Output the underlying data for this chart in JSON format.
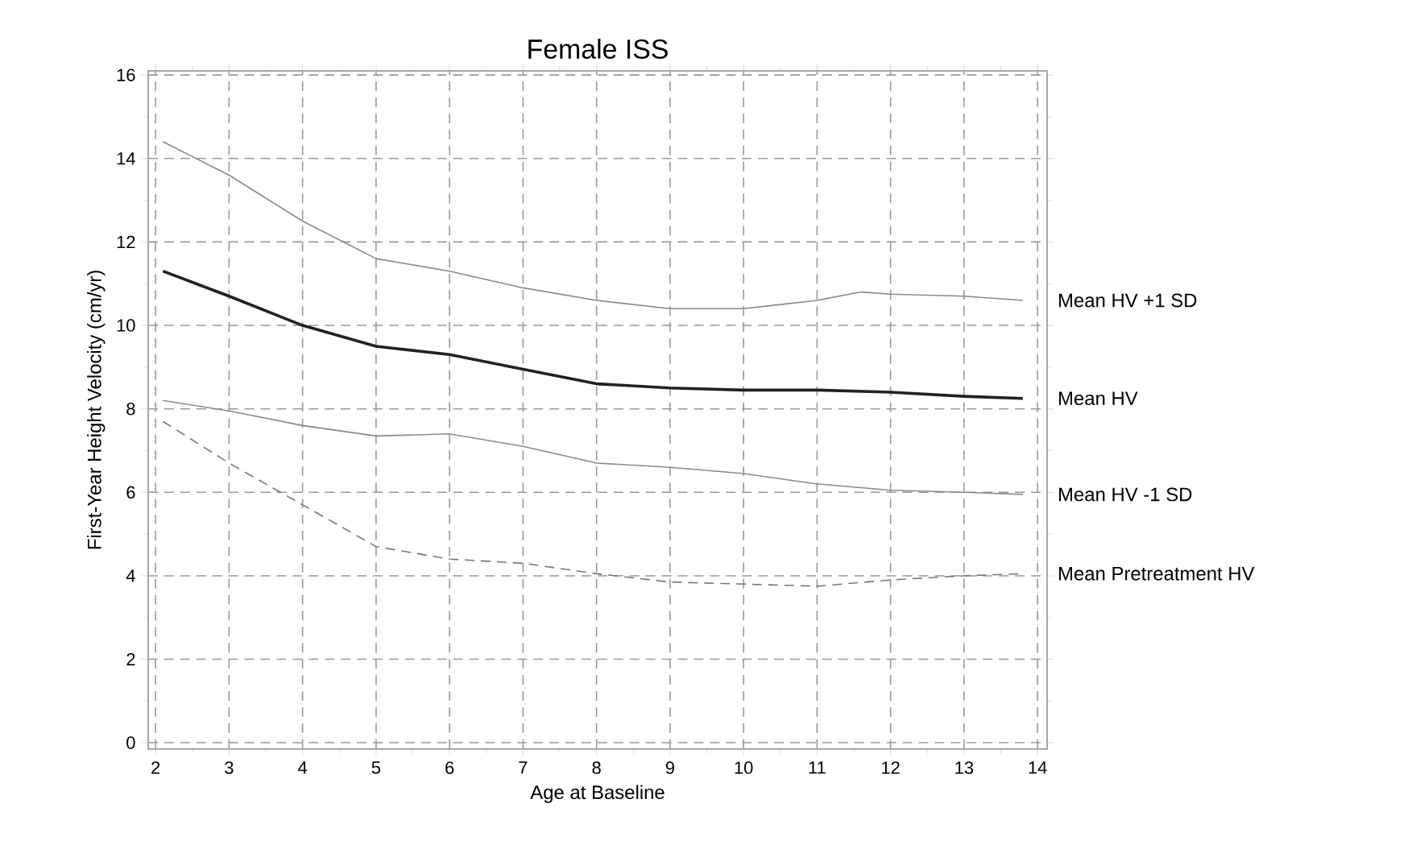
{
  "chart_data": {
    "type": "line",
    "title": "Female ISS",
    "xlabel": "Age at Baseline",
    "ylabel": "First-Year Height Velocity (cm/yr)",
    "xlim": [
      1.9,
      14.13
    ],
    "ylim": [
      -0.15,
      16.1
    ],
    "xticks": [
      2,
      3,
      4,
      5,
      6,
      7,
      8,
      9,
      10,
      11,
      12,
      13,
      14
    ],
    "yticks": [
      0,
      2,
      4,
      6,
      8,
      10,
      12,
      14,
      16
    ],
    "grid": true,
    "legend": false,
    "series": [
      {
        "name": "Mean HV +1 SD",
        "color": "#8a8a8a",
        "line_style": "solid",
        "x": [
          2.1,
          3,
          4,
          5,
          6,
          7,
          8,
          9,
          10,
          10.5,
          11,
          11.6,
          12,
          13,
          13.8
        ],
        "values": [
          14.4,
          13.6,
          12.5,
          11.6,
          11.3,
          10.9,
          10.6,
          10.4,
          10.4,
          10.5,
          10.6,
          10.8,
          10.75,
          10.7,
          10.6
        ]
      },
      {
        "name": "Mean HV",
        "color": "#222222",
        "line_style": "solid",
        "x": [
          2.1,
          3,
          4,
          5,
          6,
          7,
          8,
          9,
          10,
          11,
          12,
          13,
          13.8
        ],
        "values": [
          11.3,
          10.7,
          10.0,
          9.5,
          9.3,
          8.95,
          8.6,
          8.5,
          8.45,
          8.45,
          8.4,
          8.3,
          8.25
        ]
      },
      {
        "name": "Mean HV -1 SD",
        "color": "#8a8a8a",
        "line_style": "solid",
        "x": [
          2.1,
          3,
          4,
          5,
          6,
          7,
          8,
          9,
          10,
          11,
          12,
          13,
          13.8
        ],
        "values": [
          8.2,
          7.95,
          7.6,
          7.35,
          7.4,
          7.1,
          6.7,
          6.6,
          6.45,
          6.2,
          6.05,
          6.0,
          5.95
        ]
      },
      {
        "name": "Mean Pretreatment HV",
        "color": "#777777",
        "line_style": "dashed",
        "x": [
          2.1,
          3,
          4,
          5,
          6,
          7,
          8,
          9,
          10,
          11,
          12,
          13,
          13.8
        ],
        "values": [
          7.7,
          6.7,
          5.7,
          4.7,
          4.4,
          4.3,
          4.05,
          3.85,
          3.8,
          3.75,
          3.9,
          4.0,
          4.05
        ]
      }
    ]
  }
}
